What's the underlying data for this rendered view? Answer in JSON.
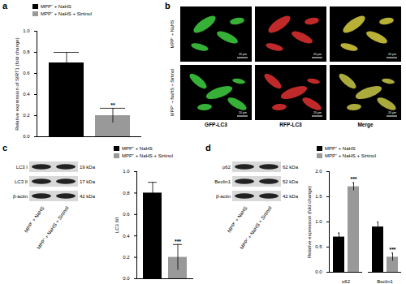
{
  "chart_data": [
    {
      "panel": "a",
      "type": "bar",
      "y_label": "Relative expression of SIRT1 (fold change)",
      "categories": [
        null
      ],
      "series": [
        {
          "name": "MPP⁺ + NaHS",
          "color": "#000000",
          "values": [
            0.7
          ],
          "errors": [
            0.1
          ]
        },
        {
          "name": "MPP⁺ + NaHS + Sirtinol",
          "color": "#999999",
          "values": [
            0.2
          ],
          "errors": [
            0.07
          ]
        }
      ],
      "ylim": [
        0,
        1
      ],
      "yticks": [
        {
          "value": 0,
          "label": "0.0"
        },
        {
          "value": 0.2,
          "label": "0.2"
        },
        {
          "value": 0.4,
          "label": "0.4"
        },
        {
          "value": 0.6,
          "label": "0.6"
        },
        {
          "value": 0.8,
          "label": "0.8"
        },
        {
          "value": 1,
          "label": "1.0"
        }
      ],
      "annotations": [
        {
          "category_index": 0,
          "series": "MPP⁺ + NaHS + Sirtinol",
          "text": "**"
        }
      ],
      "legend": "top"
    },
    {
      "panel": "c",
      "type": "bar",
      "y_label": "LC3 II/I",
      "categories": [
        null
      ],
      "series": [
        {
          "name": "MPP⁺ + NaHS",
          "color": "#000000",
          "values": [
            0.8
          ],
          "errors": [
            0.1
          ]
        },
        {
          "name": "MPP⁺ + NaHS + Sirtinol",
          "color": "#999999",
          "values": [
            0.2
          ],
          "errors": [
            0.12
          ]
        }
      ],
      "ylim": [
        0,
        1
      ],
      "yticks": [
        {
          "value": 0,
          "label": "0.0"
        },
        {
          "value": 0.2,
          "label": "0.2"
        },
        {
          "value": 0.4,
          "label": "0.4"
        },
        {
          "value": 0.6,
          "label": "0.6"
        },
        {
          "value": 0.8,
          "label": "0.8"
        },
        {
          "value": 1,
          "label": "1.0"
        }
      ],
      "annotations": [
        {
          "category_index": 0,
          "series": "MPP⁺ + NaHS + Sirtinol",
          "text": "***"
        }
      ],
      "legend": "top"
    },
    {
      "panel": "d",
      "type": "bar",
      "y_label": "Relative expression (fold change)",
      "categories": [
        "p62",
        "Beclin1"
      ],
      "series": [
        {
          "name": "MPP⁺ + NaHS",
          "color": "#000000",
          "values": [
            0.7,
            0.9
          ],
          "errors": [
            0.08,
            0.1
          ]
        },
        {
          "name": "MPP⁺ + NaHS + Sirtinol",
          "color": "#999999",
          "values": [
            1.7,
            0.3
          ],
          "errors": [
            0.08,
            0.08
          ]
        }
      ],
      "ylim": [
        0,
        2
      ],
      "yticks": [
        {
          "value": 0,
          "label": "0.0"
        },
        {
          "value": 0.5,
          "label": "0.5"
        },
        {
          "value": 1,
          "label": "1.0"
        },
        {
          "value": 1.5,
          "label": "1.5"
        },
        {
          "value": 2,
          "label": "2.0"
        }
      ],
      "annotations": [
        {
          "category_index": 0,
          "series": "MPP⁺ + NaHS + Sirtinol",
          "text": "***"
        },
        {
          "category_index": 1,
          "series": "MPP⁺ + NaHS + Sirtinol",
          "text": "***"
        }
      ],
      "legend": "top"
    }
  ],
  "figure": {
    "microscopy": {
      "panel": "b",
      "rows": [
        "MPP⁺ + NaHS",
        "MPP⁺ + NaHS + Sirtinol"
      ],
      "columns": [
        "GFP-LC3",
        "RFP-LC3",
        "Merge"
      ],
      "scale_bar": "20 μm"
    },
    "blots": [
      {
        "panel": "c",
        "lanes": [
          "MPP⁺ + NaHS",
          "MPP⁺ + NaHS + Sirtinol"
        ],
        "bands": [
          {
            "label": "LC3 I",
            "size": "19 kDa"
          },
          {
            "label": "LC3 II",
            "size": "17 kDa"
          },
          {
            "label": "β-actin",
            "size": "42 kDa"
          }
        ]
      },
      {
        "panel": "d",
        "lanes": [
          "MPP⁺ + NaHS",
          "MPP⁺ + NaHS + Sirtinol"
        ],
        "bands": [
          {
            "label": "p62",
            "size": "62 kDa"
          },
          {
            "label": "Beclin1",
            "size": "52 kDa"
          },
          {
            "label": "β-actin",
            "size": "42 kDa"
          }
        ]
      }
    ]
  }
}
